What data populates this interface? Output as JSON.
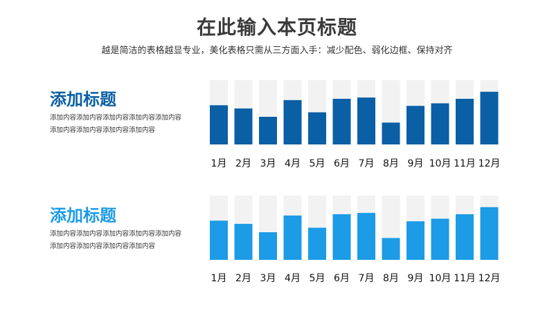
{
  "header": {
    "title": "在此输入本页标题",
    "subtitle": "越是简洁的表格越显专业，美化表格只需从三方面入手：减少配色、弱化边框、保持对齐"
  },
  "sections": [
    {
      "title": "添加标题",
      "desc_line1": "添加内容添加内容添加内容添加内容添加内容",
      "desc_line2": "添加内容添加内容添加内容添加内容",
      "accent": "#0b5fa5"
    },
    {
      "title": "添加标题",
      "desc_line1": "添加内容添加内容添加内容添加内容添加内容",
      "desc_line2": "添加内容添加内容添加内容添加内容",
      "accent": "#1c9be6"
    }
  ],
  "colors": {
    "track": "#f2f2f2",
    "bar_top": "#0b5fa5",
    "bar_bottom": "#1c9be6",
    "title": "#3a3a3a"
  },
  "chart_data": [
    {
      "type": "bar",
      "categories": [
        "1月",
        "2月",
        "3月",
        "4月",
        "5月",
        "6月",
        "7月",
        "8月",
        "9月",
        "10月",
        "11月",
        "12月"
      ],
      "values": [
        61,
        56,
        43,
        69,
        50,
        71,
        73,
        34,
        60,
        64,
        71,
        82
      ],
      "ylim": [
        0,
        100
      ],
      "background_track": true,
      "grid": false
    },
    {
      "type": "bar",
      "categories": [
        "1月",
        "2月",
        "3月",
        "4月",
        "5月",
        "6月",
        "7月",
        "8月",
        "9月",
        "10月",
        "11月",
        "12月"
      ],
      "values": [
        61,
        56,
        43,
        69,
        50,
        71,
        73,
        34,
        60,
        64,
        71,
        82
      ],
      "ylim": [
        0,
        100
      ],
      "background_track": true,
      "grid": false
    }
  ]
}
